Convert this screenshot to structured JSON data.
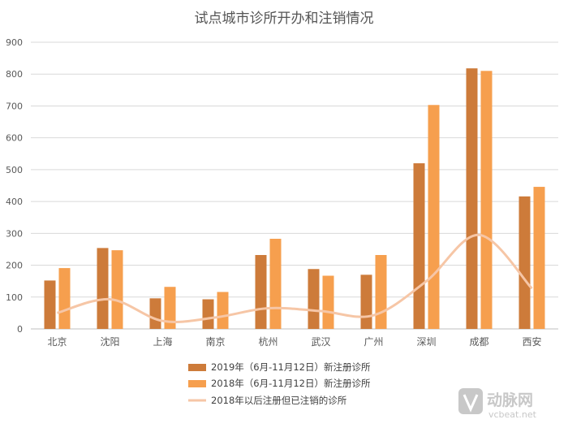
{
  "chart_data": {
    "type": "bar",
    "title": "试点城市诊所开办和注销情况",
    "categories": [
      "北京",
      "沈阳",
      "上海",
      "南京",
      "杭州",
      "武汉",
      "广州",
      "深圳",
      "成都",
      "西安"
    ],
    "ylim": [
      0,
      900
    ],
    "yticks": [
      "0",
      "100",
      "200",
      "300",
      "400",
      "500",
      "600",
      "700",
      "800",
      "900"
    ],
    "grid": true,
    "legend_position": "bottom",
    "series": [
      {
        "name": "2019年（6月-11月12日）新注册诊所",
        "kind": "bar",
        "color": "#CD7B3A",
        "values": [
          152,
          254,
          96,
          93,
          232,
          188,
          170,
          520,
          818,
          416
        ]
      },
      {
        "name": "2018年（6月-11月12日）新注册诊所",
        "kind": "bar",
        "color": "#F69F4E",
        "values": [
          191,
          247,
          132,
          116,
          283,
          167,
          232,
          703,
          810,
          446
        ]
      },
      {
        "name": "2018年以后注册但已注销的诊所",
        "kind": "line",
        "color": "#F6C6A6",
        "values": [
          50,
          93,
          25,
          36,
          65,
          56,
          43,
          150,
          295,
          127
        ]
      }
    ]
  },
  "watermark": {
    "brand": "动脉网",
    "url": "vcbeat.net"
  }
}
